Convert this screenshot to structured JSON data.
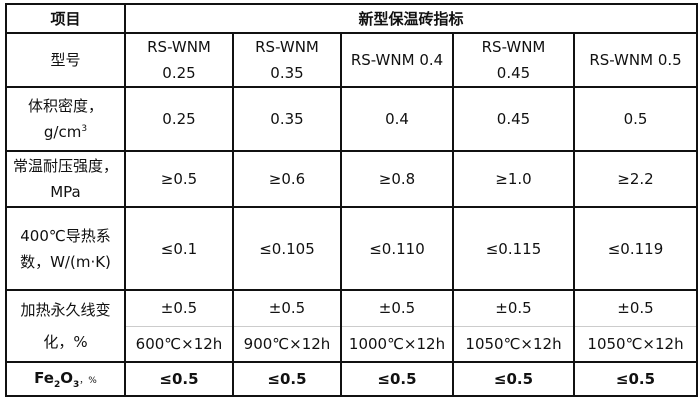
{
  "header": {
    "item": "项目",
    "group": "新型保温砖指标"
  },
  "rows": {
    "model": {
      "label": "型号",
      "values": [
        "RS-WNM 0.25",
        "RS-WNM 0.35",
        "RS-WNM 0.4",
        "RS-WNM 0.45",
        "RS-WNM 0.5"
      ]
    },
    "density": {
      "label": "体积密度，g/cm",
      "label_sup": "3",
      "values": [
        "0.25",
        "0.35",
        "0.4",
        "0.45",
        "0.5"
      ]
    },
    "strength": {
      "label": "常温耐压强度，MPa",
      "values": [
        "≥0.5",
        "≥0.6",
        "≥0.8",
        "≥1.0",
        "≥2.2"
      ]
    },
    "conductivity": {
      "label": "400℃导热系数，W/(m·K)",
      "values": [
        "≤0.1",
        "≤0.105",
        "≤0.110",
        "≤0.115",
        "≤0.119"
      ]
    },
    "linear_change": {
      "label": "加热永久线变化，%",
      "values": [
        "±0.5",
        "±0.5",
        "±0.5",
        "±0.5",
        "±0.5"
      ],
      "conditions": [
        "600℃×12h",
        "900℃×12h",
        "1000℃×12h",
        "1050℃×12h",
        "1050℃×12h"
      ]
    },
    "fe2o3": {
      "label_a": "Fe",
      "label_sub1": "2",
      "label_b": "O",
      "label_sub2": "3",
      "label_c": "，%",
      "values": [
        "≤0.5",
        "≤0.5",
        "≤0.5",
        "≤0.5",
        "≤0.5"
      ]
    }
  }
}
